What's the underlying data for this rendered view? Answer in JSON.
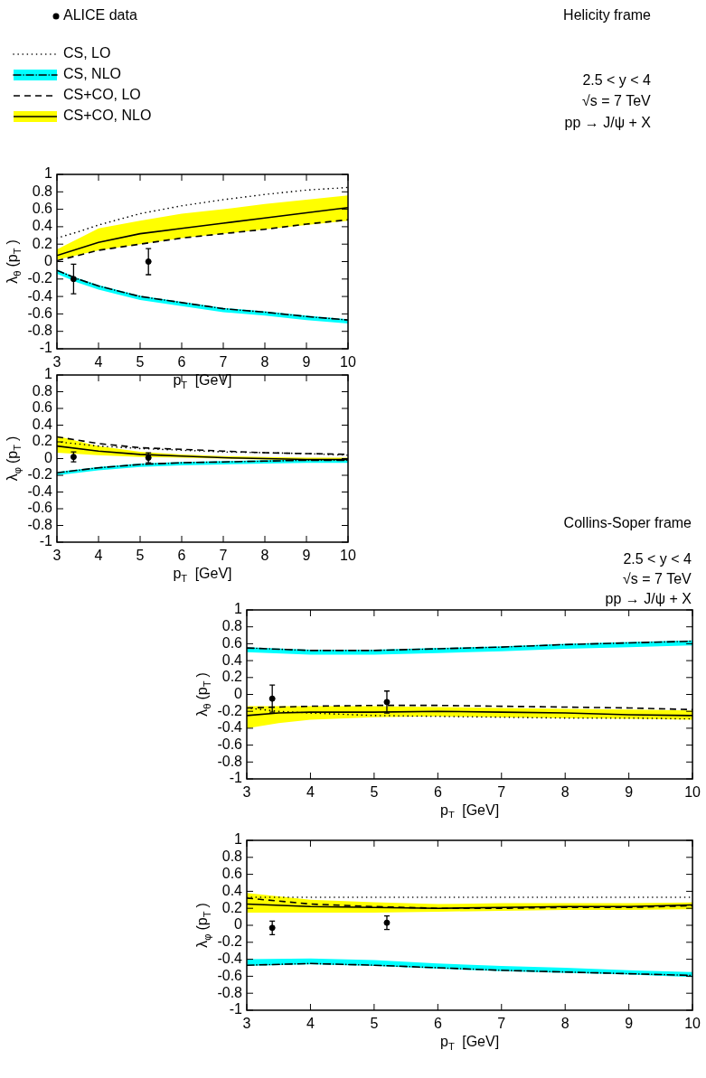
{
  "chart_data": [
    {
      "type": "line",
      "annotations": [
        "Helicity frame",
        "2.5 < y < 4",
        "√s = 7 TeV",
        "pp → J/ψ + X"
      ],
      "xlabel": "p$_{T}$ [GeV]",
      "ylabel": "λ$_{θ}$(p$_{T}$)",
      "xlim": [
        3,
        10
      ],
      "xticks": [
        3,
        4,
        5,
        6,
        7,
        8,
        9,
        10
      ],
      "ylim": [
        -1,
        1
      ],
      "yticks": [
        -1,
        -0.8,
        -0.6,
        -0.4,
        -0.2,
        0,
        0.2,
        0.4,
        0.6,
        0.8,
        1
      ],
      "grid": false,
      "legend": "top left",
      "series": [
        {
          "name": "ALICE data",
          "type": "scatter",
          "marker": "circle",
          "color": "#000000",
          "x": [
            3.4,
            5.2
          ],
          "values": [
            -0.2,
            0.0
          ],
          "errors": [
            0.17,
            0.15
          ]
        },
        {
          "name": "CS, LO",
          "type": "line",
          "line_style": "dotted",
          "color": "#000000",
          "x": [
            3,
            3.5,
            4,
            5,
            6,
            7,
            8,
            9,
            10
          ],
          "values": [
            0.27,
            0.34,
            0.42,
            0.55,
            0.64,
            0.71,
            0.77,
            0.82,
            0.85
          ]
        },
        {
          "name": "CS, NLO",
          "type": "line",
          "line_style": "dashdot",
          "color": "#000000",
          "x": [
            3,
            3.5,
            4,
            5,
            6,
            7,
            8,
            9,
            10
          ],
          "values": [
            -0.1,
            -0.2,
            -0.28,
            -0.4,
            -0.47,
            -0.54,
            -0.58,
            -0.63,
            -0.67
          ],
          "lower": [
            -0.14,
            -0.24,
            -0.32,
            -0.44,
            -0.51,
            -0.58,
            -0.62,
            -0.67,
            -0.71
          ],
          "upper": [
            -0.09,
            -0.19,
            -0.27,
            -0.39,
            -0.46,
            -0.53,
            -0.57,
            -0.62,
            -0.66
          ]
        },
        {
          "name": "CS+CO, LO",
          "type": "line",
          "line_style": "dashed",
          "color": "#000000",
          "x": [
            3,
            4,
            5,
            6,
            7,
            8,
            9,
            10
          ],
          "values": [
            0.01,
            0.13,
            0.2,
            0.27,
            0.32,
            0.37,
            0.43,
            0.48
          ]
        },
        {
          "name": "CS+CO, NLO",
          "type": "line",
          "line_style": "solid",
          "color": "#000000",
          "x": [
            3,
            4,
            5,
            6,
            7,
            8,
            9,
            10
          ],
          "values": [
            0.07,
            0.22,
            0.32,
            0.38,
            0.44,
            0.5,
            0.56,
            0.62
          ],
          "lower": [
            0.02,
            0.13,
            0.2,
            0.27,
            0.32,
            0.37,
            0.42,
            0.47
          ],
          "upper": [
            0.14,
            0.38,
            0.47,
            0.55,
            0.6,
            0.66,
            0.71,
            0.76
          ]
        }
      ]
    },
    {
      "type": "line",
      "xlabel": "p$_{T}$ [GeV]",
      "ylabel": "λ$_{φ}$(p$_{T}$)",
      "xlim": [
        3,
        10
      ],
      "xticks": [
        3,
        4,
        5,
        6,
        7,
        8,
        9,
        10
      ],
      "ylim": [
        -1,
        1
      ],
      "yticks": [
        -1,
        -0.8,
        -0.6,
        -0.4,
        -0.2,
        0,
        0.2,
        0.4,
        0.6,
        0.8,
        1
      ],
      "grid": false,
      "legend": false,
      "series": [
        {
          "type": "scatter",
          "marker": "circle",
          "color": "#000000",
          "x": [
            3.4,
            5.2
          ],
          "values": [
            0.02,
            0.01
          ],
          "errors": [
            0.06,
            0.06
          ]
        },
        {
          "type": "line",
          "line_style": "dotted",
          "color": "#000000",
          "x": [
            3,
            4,
            5,
            6,
            7,
            8,
            9,
            10
          ],
          "values": [
            0.2,
            0.15,
            0.12,
            0.1,
            0.08,
            0.07,
            0.06,
            0.04
          ]
        },
        {
          "type": "line",
          "line_style": "dashdot",
          "color": "#000000",
          "x": [
            3,
            4,
            5,
            6,
            7,
            8,
            9,
            10
          ],
          "values": [
            -0.17,
            -0.11,
            -0.07,
            -0.05,
            -0.04,
            -0.03,
            -0.02,
            -0.02
          ],
          "lower": [
            -0.2,
            -0.14,
            -0.1,
            -0.08,
            -0.07,
            -0.06,
            -0.05,
            -0.05
          ],
          "upper": [
            -0.16,
            -0.1,
            -0.06,
            -0.04,
            -0.03,
            -0.02,
            -0.01,
            -0.01
          ]
        },
        {
          "type": "line",
          "line_style": "dashed",
          "color": "#000000",
          "x": [
            3,
            4,
            5,
            6,
            7,
            8,
            9,
            10
          ],
          "values": [
            0.26,
            0.18,
            0.13,
            0.11,
            0.09,
            0.07,
            0.06,
            0.05
          ]
        },
        {
          "type": "line",
          "line_style": "solid",
          "color": "#000000",
          "x": [
            3,
            4,
            5,
            6,
            7,
            8,
            9,
            10
          ],
          "values": [
            0.15,
            0.09,
            0.05,
            0.03,
            0.01,
            0.0,
            -0.01,
            -0.01
          ],
          "lower": [
            0.07,
            0.04,
            0.02,
            0.01,
            0,
            -0.01,
            -0.02,
            -0.02
          ],
          "upper": [
            0.27,
            0.15,
            0.08,
            0.05,
            0.03,
            0.02,
            0.01,
            0.01
          ]
        }
      ]
    },
    {
      "type": "line",
      "annotations": [
        "Collins-Soper frame",
        "2.5 < y < 4",
        "√s = 7 TeV",
        "pp → J/ψ + X"
      ],
      "xlabel": "p$_{T}$ [GeV]",
      "ylabel": "λ$_{θ}$(p$_{T}$)",
      "xlim": [
        3,
        10
      ],
      "xticks": [
        3,
        4,
        5,
        6,
        7,
        8,
        9,
        10
      ],
      "ylim": [
        -1,
        1
      ],
      "yticks": [
        -1,
        -0.8,
        -0.6,
        -0.4,
        -0.2,
        0,
        0.2,
        0.4,
        0.6,
        0.8,
        1
      ],
      "grid": false,
      "legend": false,
      "series": [
        {
          "type": "scatter",
          "marker": "circle",
          "color": "#000000",
          "x": [
            3.4,
            5.2
          ],
          "values": [
            -0.05,
            -0.09
          ],
          "errors": [
            0.16,
            0.13
          ]
        },
        {
          "type": "line",
          "line_style": "dotted",
          "color": "#000000",
          "x": [
            3,
            3.5,
            4,
            5,
            6,
            7,
            8,
            9,
            10
          ],
          "values": [
            -0.16,
            -0.2,
            -0.22,
            -0.25,
            -0.26,
            -0.27,
            -0.28,
            -0.28,
            -0.29
          ]
        },
        {
          "type": "line",
          "line_style": "dashdot",
          "color": "#000000",
          "x": [
            3,
            4,
            5,
            6,
            7,
            8,
            9,
            10
          ],
          "values": [
            0.55,
            0.52,
            0.52,
            0.54,
            0.56,
            0.59,
            0.61,
            0.63
          ],
          "lower": [
            0.5,
            0.47,
            0.47,
            0.49,
            0.51,
            0.54,
            0.56,
            0.58
          ],
          "upper": [
            0.56,
            0.53,
            0.53,
            0.55,
            0.57,
            0.6,
            0.62,
            0.64
          ]
        },
        {
          "type": "line",
          "line_style": "dashed",
          "color": "#000000",
          "x": [
            3,
            4,
            5,
            6,
            7,
            8,
            9,
            10
          ],
          "values": [
            -0.16,
            -0.14,
            -0.13,
            -0.13,
            -0.14,
            -0.15,
            -0.16,
            -0.18
          ]
        },
        {
          "type": "line",
          "line_style": "solid",
          "color": "#000000",
          "x": [
            3,
            3.5,
            4,
            5,
            6,
            7,
            8,
            9,
            10
          ],
          "values": [
            -0.25,
            -0.22,
            -0.21,
            -0.21,
            -0.2,
            -0.21,
            -0.22,
            -0.24,
            -0.25
          ],
          "lower": [
            -0.4,
            -0.34,
            -0.3,
            -0.27,
            -0.26,
            -0.27,
            -0.28,
            -0.29,
            -0.3
          ],
          "upper": [
            -0.14,
            -0.14,
            -0.14,
            -0.14,
            -0.15,
            -0.16,
            -0.17,
            -0.18,
            -0.19
          ]
        }
      ]
    },
    {
      "type": "line",
      "xlabel": "p$_{T}$ [GeV]",
      "ylabel": "λ$_{φ}$(p$_{T}$)",
      "xlim": [
        3,
        10
      ],
      "xticks": [
        3,
        4,
        5,
        6,
        7,
        8,
        9,
        10
      ],
      "ylim": [
        -1,
        1
      ],
      "yticks": [
        -1,
        -0.8,
        -0.6,
        -0.4,
        -0.2,
        0,
        0.2,
        0.4,
        0.6,
        0.8,
        1
      ],
      "grid": false,
      "legend": false,
      "series": [
        {
          "type": "scatter",
          "marker": "circle",
          "color": "#000000",
          "x": [
            3.4,
            5.2
          ],
          "values": [
            -0.03,
            0.03
          ],
          "errors": [
            0.08,
            0.08
          ]
        },
        {
          "type": "line",
          "line_style": "dotted",
          "color": "#000000",
          "x": [
            3,
            4,
            5,
            6,
            7,
            8,
            9,
            10
          ],
          "values": [
            0.33,
            0.33,
            0.33,
            0.33,
            0.33,
            0.33,
            0.33,
            0.33
          ]
        },
        {
          "type": "line",
          "line_style": "dashdot",
          "color": "#000000",
          "x": [
            3,
            4,
            5,
            6,
            7,
            8,
            9,
            10
          ],
          "values": [
            -0.47,
            -0.45,
            -0.47,
            -0.5,
            -0.53,
            -0.55,
            -0.57,
            -0.59
          ],
          "lower": [
            -0.48,
            -0.46,
            -0.48,
            -0.51,
            -0.54,
            -0.56,
            -0.58,
            -0.61
          ],
          "upper": [
            -0.4,
            -0.39,
            -0.41,
            -0.45,
            -0.48,
            -0.5,
            -0.53,
            -0.55
          ]
        },
        {
          "type": "line",
          "line_style": "dashed",
          "color": "#000000",
          "x": [
            3,
            4,
            5,
            6,
            7,
            8,
            9,
            10
          ],
          "values": [
            0.32,
            0.25,
            0.22,
            0.2,
            0.2,
            0.21,
            0.21,
            0.23
          ]
        },
        {
          "type": "line",
          "line_style": "solid",
          "color": "#000000",
          "x": [
            3,
            4,
            5,
            6,
            7,
            8,
            9,
            10
          ],
          "values": [
            0.25,
            0.22,
            0.21,
            0.2,
            0.21,
            0.22,
            0.22,
            0.24
          ],
          "lower": [
            0.15,
            0.15,
            0.15,
            0.16,
            0.17,
            0.18,
            0.18,
            0.19
          ],
          "upper": [
            0.38,
            0.3,
            0.27,
            0.25,
            0.26,
            0.26,
            0.26,
            0.27
          ]
        }
      ]
    }
  ]
}
